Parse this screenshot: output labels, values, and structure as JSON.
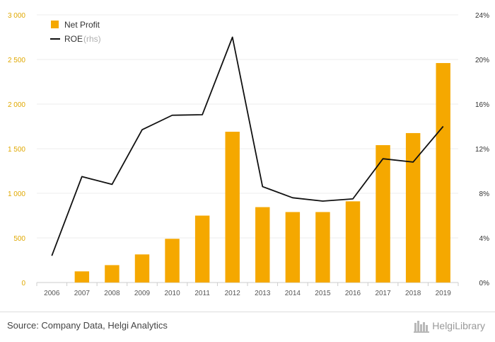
{
  "chart_data": {
    "type": "bar",
    "categories": [
      "2006",
      "2007",
      "2008",
      "2009",
      "2010",
      "2011",
      "2012",
      "2013",
      "2014",
      "2015",
      "2016",
      "2017",
      "2018",
      "2019"
    ],
    "series": [
      {
        "name": "Net Profit",
        "type": "bar",
        "axis": "left",
        "color": "#f5a800",
        "values": [
          0,
          125,
          195,
          315,
          490,
          750,
          1690,
          845,
          790,
          790,
          910,
          1540,
          1675,
          2460
        ]
      },
      {
        "name": "ROE",
        "type": "line",
        "axis": "right",
        "color": "#111111",
        "values": [
          2.4,
          9.5,
          8.8,
          13.7,
          15.0,
          15.05,
          22.0,
          8.6,
          7.6,
          7.3,
          7.5,
          11.1,
          10.8,
          14.0
        ]
      }
    ],
    "legend": [
      {
        "label": "Net Profit",
        "note": ""
      },
      {
        "label": "ROE",
        "note": "(rhs)"
      }
    ],
    "legend_position": "top-left",
    "y_left": {
      "range": [
        0,
        3000
      ],
      "ticks": [
        0,
        500,
        1000,
        1500,
        2000,
        2500,
        3000
      ],
      "tick_labels": [
        "0",
        "500",
        "1 000",
        "1 500",
        "2 000",
        "2 500",
        "3 000"
      ],
      "color": "#e0a800"
    },
    "y_right": {
      "range": [
        0,
        24
      ],
      "ticks": [
        0,
        4,
        8,
        12,
        16,
        20,
        24
      ],
      "tick_labels": [
        "0%",
        "4%",
        "8%",
        "12%",
        "16%",
        "20%",
        "24%"
      ]
    },
    "grid": true
  },
  "footer": {
    "source": "Source: Company Data, Helgi Analytics",
    "brand": "HelgiLibrary"
  }
}
